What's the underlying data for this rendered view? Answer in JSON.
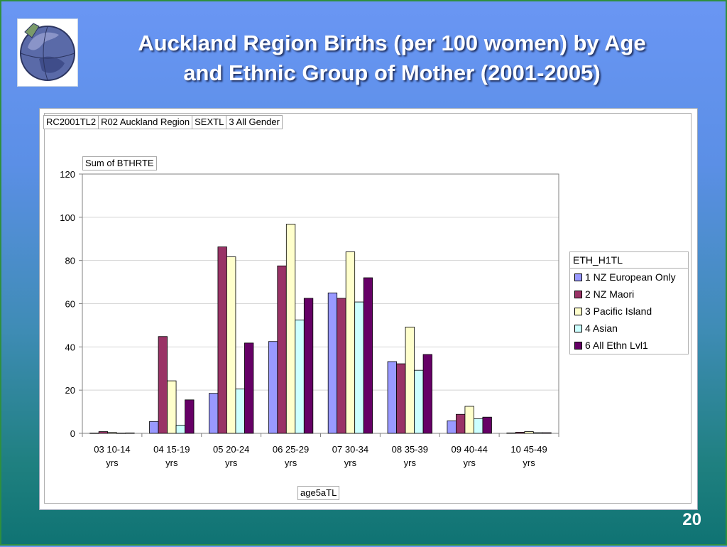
{
  "slide": {
    "title_line1": "Auckland Region Births (per 100 women) by Age",
    "title_line2": "and Ethnic Group of Mother (2001-2005)",
    "page_number": "20"
  },
  "filters": [
    "RC2001TL2",
    "R02 Auckland Region",
    "SEXTL",
    "3 All Gender"
  ],
  "data_field": "Sum of BTHRTE",
  "category_field": "age5aTL",
  "chart_data": {
    "type": "bar",
    "categories": [
      [
        "03 10-14",
        "yrs"
      ],
      [
        "04 15-19",
        "yrs"
      ],
      [
        "05 20-24",
        "yrs"
      ],
      [
        "06 25-29",
        "yrs"
      ],
      [
        "07 30-34",
        "yrs"
      ],
      [
        "08 35-39",
        "yrs"
      ],
      [
        "09 40-44",
        "yrs"
      ],
      [
        "10 45-49",
        "yrs"
      ]
    ],
    "ylim": [
      0,
      120
    ],
    "yticks": [
      0,
      20,
      40,
      60,
      80,
      100,
      120
    ],
    "grid": true,
    "legend_title": "ETH_H1TL",
    "legend_position": "right",
    "series": [
      {
        "name": "1 NZ European Only",
        "color": "#9999ff",
        "values": [
          0.1,
          5.5,
          18.5,
          42.5,
          65,
          33.2,
          5.8,
          0.2
        ]
      },
      {
        "name": "2 NZ Maori",
        "color": "#993366",
        "values": [
          0.8,
          44.8,
          86.3,
          77.5,
          62.5,
          32.2,
          8.8,
          0.5
        ]
      },
      {
        "name": "3 Pacific Island",
        "color": "#ffffcc",
        "values": [
          0.4,
          24.3,
          81.7,
          96.8,
          84.0,
          49.2,
          12.5,
          0.8
        ]
      },
      {
        "name": "4 Asian",
        "color": "#ccffff",
        "values": [
          0.1,
          3.8,
          20.5,
          52.5,
          60.8,
          29.2,
          6.8,
          0.3
        ]
      },
      {
        "name": "6 All Ethn Lvl1",
        "color": "#660066",
        "values": [
          0.2,
          15.5,
          41.8,
          62.5,
          72.0,
          36.5,
          7.5,
          0.3
        ]
      }
    ]
  }
}
